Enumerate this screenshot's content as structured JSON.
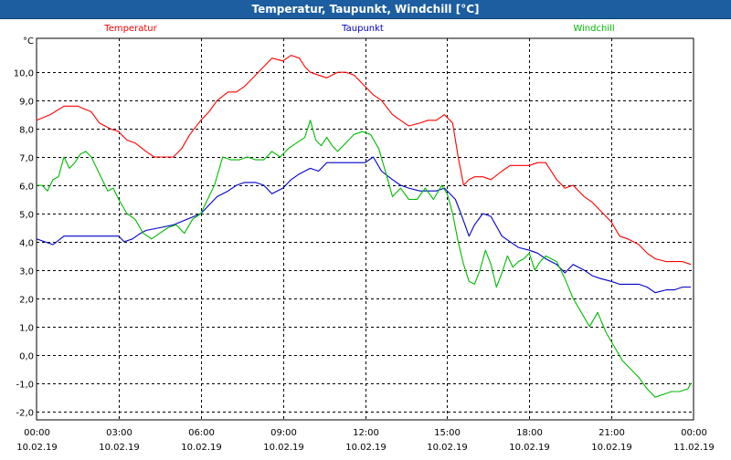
{
  "window": {
    "title": "Temperatur, Taupunkt, Windchill [°C]"
  },
  "chart_data": {
    "type": "line",
    "title": "Temperatur, Taupunkt, Windchill [°C]",
    "ylabel": "°C",
    "xlabel": "",
    "ylim": [
      -2.3,
      11.2
    ],
    "yticks": [
      "-2,0",
      "-1,0",
      "0,0",
      "1,0",
      "2,0",
      "3,0",
      "4,0",
      "5,0",
      "6,0",
      "7,0",
      "8,0",
      "9,0",
      "10,0"
    ],
    "xticks": [
      {
        "time": "00:00",
        "date": "10.02.19"
      },
      {
        "time": "03:00",
        "date": "10.02.19"
      },
      {
        "time": "06:00",
        "date": "10.02.19"
      },
      {
        "time": "09:00",
        "date": "10.02.19"
      },
      {
        "time": "12:00",
        "date": "10.02.19"
      },
      {
        "time": "15:00",
        "date": "10.02.19"
      },
      {
        "time": "18:00",
        "date": "10.02.19"
      },
      {
        "time": "21:00",
        "date": "10.02.19"
      },
      {
        "time": "00:00",
        "date": "11.02.19"
      }
    ],
    "xrange_hours": [
      0,
      24
    ],
    "grid": true,
    "series": [
      {
        "name": "Temperatur",
        "color": "#ff0000",
        "x": [
          0,
          0.5,
          1,
          1.5,
          2,
          2.3,
          2.5,
          2.7,
          3,
          3.3,
          3.6,
          4,
          4.3,
          4.6,
          5,
          5.3,
          5.6,
          6,
          6.3,
          6.6,
          7,
          7.3,
          7.6,
          8,
          8.3,
          8.6,
          9,
          9.3,
          9.6,
          9.8,
          10,
          10.3,
          10.6,
          11,
          11.3,
          11.6,
          12,
          12.3,
          12.6,
          13,
          13.3,
          13.6,
          14,
          14.3,
          14.6,
          14.9,
          15.2,
          15.4,
          15.6,
          15.8,
          16,
          16.3,
          16.6,
          17,
          17.3,
          17.6,
          18,
          18.3,
          18.6,
          19,
          19.3,
          19.6,
          20,
          20.3,
          20.6,
          21,
          21.3,
          21.6,
          22,
          22.3,
          22.6,
          23,
          23.3,
          23.6,
          23.9
        ],
        "y": [
          8.3,
          8.5,
          8.8,
          8.8,
          8.6,
          8.2,
          8.1,
          8.0,
          7.9,
          7.6,
          7.5,
          7.2,
          7.0,
          7.0,
          7.0,
          7.3,
          7.8,
          8.3,
          8.6,
          9.0,
          9.3,
          9.3,
          9.5,
          9.9,
          10.2,
          10.5,
          10.4,
          10.6,
          10.5,
          10.2,
          10.0,
          9.9,
          9.8,
          10.0,
          10.0,
          9.9,
          9.5,
          9.2,
          9.0,
          8.5,
          8.3,
          8.1,
          8.2,
          8.3,
          8.3,
          8.5,
          8.2,
          7.0,
          6.0,
          6.2,
          6.3,
          6.3,
          6.2,
          6.5,
          6.7,
          6.7,
          6.7,
          6.8,
          6.8,
          6.2,
          5.9,
          6.0,
          5.6,
          5.4,
          5.1,
          4.7,
          4.2,
          4.1,
          3.9,
          3.6,
          3.4,
          3.3,
          3.3,
          3.3,
          3.2
        ]
      },
      {
        "name": "Taupunkt",
        "color": "#0000cc",
        "x": [
          0,
          0.3,
          0.6,
          1,
          1.5,
          2,
          2.5,
          3,
          3.2,
          3.5,
          3.8,
          4,
          4.5,
          5,
          5.5,
          6,
          6.3,
          6.6,
          7,
          7.3,
          7.6,
          8,
          8.3,
          8.6,
          9,
          9.3,
          9.6,
          10,
          10.3,
          10.6,
          11,
          11.5,
          12,
          12.3,
          12.6,
          13,
          13.3,
          13.6,
          14,
          14.3,
          14.6,
          14.9,
          15.1,
          15.3,
          15.5,
          15.8,
          16,
          16.3,
          16.6,
          17,
          17.3,
          17.6,
          18,
          18.3,
          18.6,
          19,
          19.3,
          19.6,
          20,
          20.3,
          20.6,
          21,
          21.3,
          21.6,
          22,
          22.3,
          22.6,
          23,
          23.3,
          23.6,
          23.9
        ],
        "y": [
          4.1,
          4.0,
          3.9,
          4.2,
          4.2,
          4.2,
          4.2,
          4.2,
          4.0,
          4.1,
          4.3,
          4.4,
          4.5,
          4.6,
          4.8,
          5.0,
          5.3,
          5.6,
          5.8,
          6.0,
          6.1,
          6.1,
          6.0,
          5.7,
          5.9,
          6.2,
          6.4,
          6.6,
          6.5,
          6.8,
          6.8,
          6.8,
          6.8,
          7.0,
          6.5,
          6.2,
          6.0,
          5.9,
          5.8,
          5.8,
          5.8,
          5.9,
          5.7,
          5.5,
          5.0,
          4.2,
          4.6,
          5.0,
          4.9,
          4.2,
          4.0,
          3.8,
          3.7,
          3.6,
          3.4,
          3.2,
          2.9,
          3.2,
          3.0,
          2.8,
          2.7,
          2.6,
          2.5,
          2.5,
          2.5,
          2.4,
          2.2,
          2.3,
          2.3,
          2.4,
          2.4
        ]
      },
      {
        "name": "Windchill",
        "color": "#00bb00",
        "x": [
          0,
          0.2,
          0.4,
          0.6,
          0.8,
          1,
          1.2,
          1.4,
          1.6,
          1.8,
          2,
          2.2,
          2.4,
          2.6,
          2.8,
          3,
          3.3,
          3.6,
          3.9,
          4.2,
          4.5,
          4.8,
          5.1,
          5.4,
          5.7,
          6,
          6.3,
          6.5,
          6.8,
          7.1,
          7.4,
          7.7,
          8,
          8.3,
          8.6,
          8.9,
          9.2,
          9.5,
          9.8,
          10,
          10.2,
          10.4,
          10.6,
          10.8,
          11,
          11.3,
          11.6,
          11.9,
          12.2,
          12.5,
          12.8,
          13,
          13.3,
          13.6,
          13.9,
          14.2,
          14.5,
          14.8,
          15,
          15.2,
          15.4,
          15.6,
          15.8,
          16,
          16.2,
          16.4,
          16.6,
          16.8,
          17,
          17.2,
          17.4,
          17.6,
          17.8,
          18,
          18.2,
          18.4,
          18.6,
          18.8,
          19,
          19.3,
          19.6,
          19.9,
          20.2,
          20.5,
          20.8,
          21.1,
          21.4,
          21.7,
          22,
          22.3,
          22.6,
          22.9,
          23.2,
          23.5,
          23.8,
          23.9
        ],
        "y": [
          6.0,
          6.0,
          5.8,
          6.2,
          6.3,
          7.0,
          6.6,
          6.8,
          7.1,
          7.2,
          7.0,
          6.6,
          6.2,
          5.8,
          5.9,
          5.5,
          5.0,
          4.8,
          4.3,
          4.1,
          4.3,
          4.5,
          4.6,
          4.3,
          4.8,
          5.0,
          5.6,
          6.0,
          7.0,
          6.9,
          6.9,
          7.0,
          6.9,
          6.9,
          7.2,
          7.0,
          7.3,
          7.5,
          7.7,
          8.3,
          7.6,
          7.4,
          7.7,
          7.4,
          7.2,
          7.5,
          7.8,
          7.9,
          7.8,
          7.3,
          6.3,
          5.6,
          5.9,
          5.5,
          5.5,
          5.9,
          5.5,
          6.0,
          5.7,
          5.0,
          4.0,
          3.2,
          2.6,
          2.5,
          3.0,
          3.7,
          3.2,
          2.4,
          2.9,
          3.5,
          3.1,
          3.3,
          3.4,
          3.6,
          3.0,
          3.3,
          3.5,
          3.4,
          3.3,
          2.7,
          2.0,
          1.5,
          1.0,
          1.5,
          0.8,
          0.3,
          -0.2,
          -0.5,
          -0.8,
          -1.2,
          -1.5,
          -1.4,
          -1.3,
          -1.3,
          -1.2,
          -1.0
        ]
      }
    ]
  }
}
